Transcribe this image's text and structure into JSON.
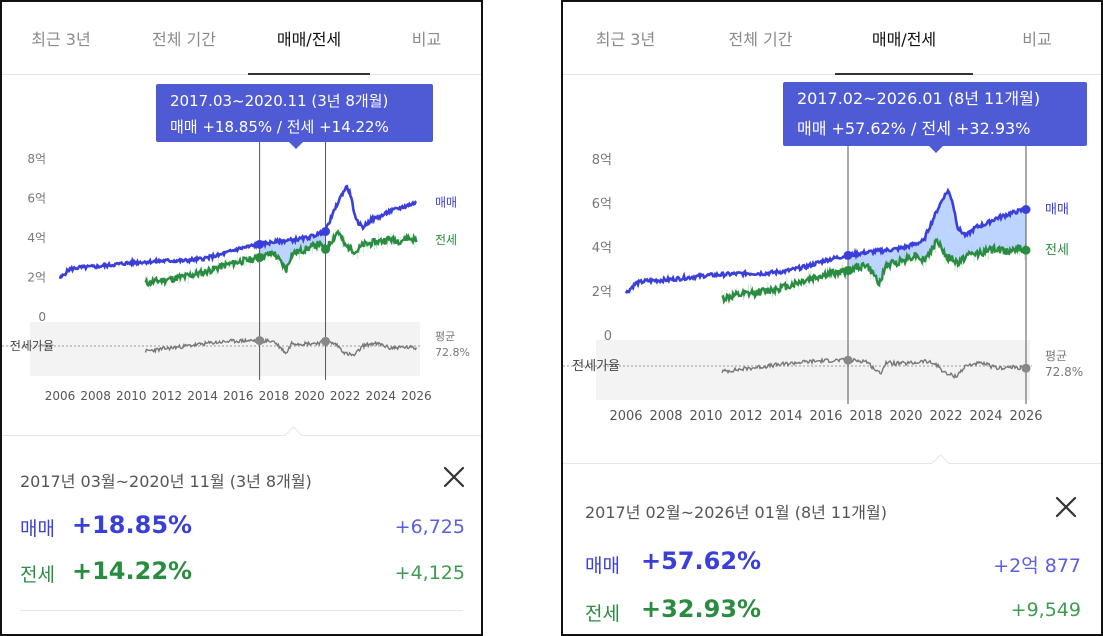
{
  "panels": [
    {
      "tabs": [
        {
          "label": "최근 3년",
          "active": false
        },
        {
          "label": "전체 기간",
          "active": false
        },
        {
          "label": "매매/전세",
          "active": true
        },
        {
          "label": "비교",
          "active": false
        }
      ],
      "tooltip": {
        "line1": "2017.03~2020.11 (3년 8개월)",
        "line2": "매매 +18.85%  /  전세 +14.22%"
      },
      "summary": {
        "period": "2017년 03월~2020년 11월 (3년 8개월)",
        "sale_label": "매매",
        "sale_pct": "+18.85%",
        "sale_amount": "+6,725",
        "jeonse_label": "전세",
        "jeonse_pct": "+14.22%",
        "jeonse_amount": "+4,125"
      }
    },
    {
      "tabs": [
        {
          "label": "최근 3년",
          "active": false
        },
        {
          "label": "전체 기간",
          "active": false
        },
        {
          "label": "매매/전세",
          "active": true
        },
        {
          "label": "비교",
          "active": false
        }
      ],
      "tooltip": {
        "line1": "2017.02~2026.01 (8년 11개월)",
        "line2": "매매 +57.62%  /  전세 +32.93%"
      },
      "summary": {
        "period": "2017년 02월~2026년 01월 (8년 11개월)",
        "sale_label": "매매",
        "sale_pct": "+57.62%",
        "sale_amount": "+2억 877",
        "jeonse_label": "전세",
        "jeonse_pct": "+32.93%",
        "jeonse_amount": "+9,549"
      }
    }
  ],
  "chart_data": [
    {
      "type": "line",
      "y_ticks": [
        "8억",
        "6억",
        "4억",
        "2억",
        "0"
      ],
      "ylim": [
        0,
        8
      ],
      "x_ticks": [
        "2006",
        "2008",
        "2010",
        "2012",
        "2014",
        "2016",
        "2018",
        "2020",
        "2022",
        "2024",
        "2026"
      ],
      "xlim": [
        2006,
        2026.2
      ],
      "ratio_label": "전세가율",
      "avg_label": "평균",
      "avg_value": "72.8%",
      "selection": [
        2017.2,
        2020.9
      ],
      "series": [
        {
          "name": "매매",
          "color": "#3b3fd9",
          "x": [
            2006,
            2006.5,
            2007,
            2008,
            2009,
            2010,
            2011,
            2012,
            2013,
            2014,
            2015,
            2016,
            2017,
            2018,
            2019,
            2019.5,
            2020,
            2020.5,
            2020.9,
            2021,
            2021.3,
            2021.6,
            2021.9,
            2022.1,
            2022.3,
            2022.6,
            2023,
            2023.5,
            2024,
            2024.5,
            2025,
            2025.5,
            2026
          ],
          "values": [
            1.95,
            2.4,
            2.5,
            2.55,
            2.65,
            2.75,
            2.8,
            2.85,
            2.85,
            2.95,
            3.15,
            3.45,
            3.65,
            3.8,
            3.9,
            3.95,
            4.05,
            4.2,
            4.33,
            4.6,
            5.2,
            5.8,
            6.35,
            6.6,
            6.2,
            4.9,
            4.55,
            4.95,
            5.1,
            5.35,
            5.5,
            5.65,
            5.8
          ]
        },
        {
          "name": "전세",
          "color": "#2a8c40",
          "x": [
            2010.8,
            2011,
            2012,
            2013,
            2014,
            2015,
            2016,
            2017,
            2018,
            2018.7,
            2019,
            2019.5,
            2020,
            2020.5,
            2020.9,
            2021.3,
            2021.6,
            2022,
            2022.3,
            2022.6,
            2023,
            2023.5,
            2024,
            2024.5,
            2025,
            2025.5,
            2026
          ],
          "values": [
            1.7,
            1.75,
            1.9,
            2.05,
            2.25,
            2.55,
            2.8,
            2.95,
            3.25,
            2.4,
            3.2,
            3.35,
            3.5,
            3.7,
            3.43,
            3.95,
            4.35,
            3.6,
            3.5,
            3.3,
            3.65,
            3.75,
            3.85,
            3.95,
            3.85,
            4.0,
            3.9
          ]
        },
        {
          "name": "전세가율",
          "color": "#777777",
          "x": [
            2010.8,
            2011.5,
            2012.5,
            2013.5,
            2014.5,
            2015.5,
            2016.5,
            2017.2,
            2018,
            2018.7,
            2019,
            2019.5,
            2020,
            2020.5,
            2020.9,
            2021.5,
            2022,
            2022.5,
            2023,
            2023.5,
            2024,
            2024.5,
            2025,
            2025.5,
            2026
          ],
          "values": [
            66,
            68,
            71,
            74,
            77,
            79,
            80,
            80,
            79,
            63,
            77,
            76,
            76,
            77,
            79,
            75,
            63,
            60,
            73,
            76,
            75,
            70,
            71,
            71,
            70
          ]
        }
      ]
    },
    {
      "type": "line",
      "y_ticks": [
        "8억",
        "6억",
        "4억",
        "2억",
        "0"
      ],
      "ylim": [
        0,
        8
      ],
      "x_ticks": [
        "2006",
        "2008",
        "2010",
        "2012",
        "2014",
        "2016",
        "2018",
        "2020",
        "2022",
        "2024",
        "2026"
      ],
      "xlim": [
        2006,
        2026.2
      ],
      "ratio_label": "전세가율",
      "avg_label": "평균",
      "avg_value": "72.8%",
      "selection": [
        2017.1,
        2026.0
      ],
      "series": [
        {
          "name": "매매",
          "color": "#3b3fd9",
          "x": [
            2006,
            2006.5,
            2007,
            2008,
            2009,
            2010,
            2011,
            2012,
            2013,
            2014,
            2015,
            2016,
            2017,
            2018,
            2019,
            2019.5,
            2020,
            2020.5,
            2020.9,
            2021,
            2021.3,
            2021.6,
            2021.9,
            2022.1,
            2022.3,
            2022.6,
            2023,
            2023.5,
            2024,
            2024.5,
            2025,
            2025.5,
            2026
          ],
          "values": [
            1.95,
            2.4,
            2.5,
            2.55,
            2.65,
            2.75,
            2.8,
            2.85,
            2.85,
            2.95,
            3.15,
            3.45,
            3.65,
            3.8,
            3.9,
            3.95,
            4.05,
            4.2,
            4.33,
            4.6,
            5.2,
            5.8,
            6.35,
            6.6,
            6.2,
            4.9,
            4.55,
            4.95,
            5.1,
            5.35,
            5.5,
            5.65,
            5.75
          ]
        },
        {
          "name": "전세",
          "color": "#2a8c40",
          "x": [
            2010.8,
            2011,
            2012,
            2013,
            2014,
            2015,
            2016,
            2017,
            2018,
            2018.7,
            2019,
            2019.5,
            2020,
            2020.5,
            2020.9,
            2021.3,
            2021.6,
            2022,
            2022.3,
            2022.6,
            2023,
            2023.5,
            2024,
            2024.5,
            2025,
            2025.5,
            2026
          ],
          "values": [
            1.7,
            1.75,
            1.9,
            2.05,
            2.25,
            2.55,
            2.8,
            2.95,
            3.25,
            2.4,
            3.2,
            3.35,
            3.5,
            3.7,
            3.43,
            3.95,
            4.35,
            3.6,
            3.5,
            3.3,
            3.65,
            3.75,
            3.85,
            3.95,
            3.85,
            4.0,
            3.9
          ]
        },
        {
          "name": "전세가율",
          "color": "#777777",
          "x": [
            2010.8,
            2011.5,
            2012.5,
            2013.5,
            2014.5,
            2015.5,
            2016.5,
            2017.2,
            2018,
            2018.7,
            2019,
            2019.5,
            2020,
            2020.5,
            2020.9,
            2021.5,
            2022,
            2022.5,
            2023,
            2023.5,
            2024,
            2024.5,
            2025,
            2025.5,
            2026
          ],
          "values": [
            66,
            68,
            71,
            74,
            77,
            79,
            80,
            80,
            79,
            63,
            77,
            76,
            76,
            77,
            79,
            75,
            63,
            60,
            73,
            76,
            75,
            70,
            71,
            71,
            70
          ]
        }
      ]
    }
  ]
}
